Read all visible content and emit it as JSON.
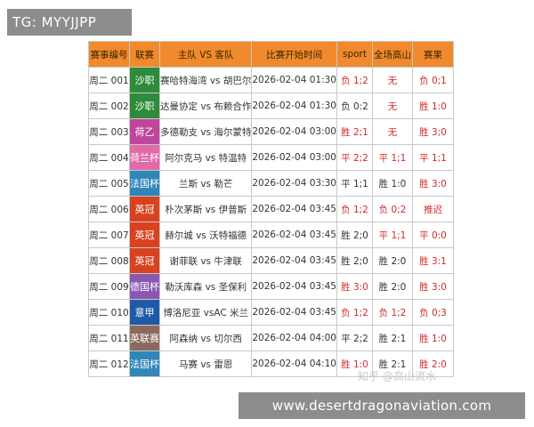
{
  "top_tag": "TG: MYYJJPP",
  "bottom_url": "www.desertdragonaviation.com",
  "watermark": "知乎 @高山流水",
  "columns": {
    "num": "赛事编号",
    "league": "联赛",
    "teams": "主队 VS 客队",
    "time": "比赛开始时间",
    "sport": "sport",
    "handicap": "全场高山",
    "result": "赛果"
  },
  "rows": [
    {
      "num": "周二 001",
      "league": "沙职",
      "league_color": "#2e8b3a",
      "teams": "赛哈特海湾 vs 胡巴尔",
      "time": "2026-02-04 01:30",
      "sport": "负 1;2",
      "sport_color": "#d22b2b",
      "handicap": "无",
      "handicap_color": "#d22b2b",
      "result": "负 0;1",
      "result_color": "#d22b2b"
    },
    {
      "num": "周二 002",
      "league": "沙职",
      "league_color": "#2e8b3a",
      "teams": "达曼协定 vs 布赖合作",
      "time": "2026-02-04 01:30",
      "sport": "负 0:2",
      "sport_color": "#333333",
      "handicap": "无",
      "handicap_color": "#d22b2b",
      "result": "胜 1:0",
      "result_color": "#d22b2b"
    },
    {
      "num": "周二 003",
      "league": "荷乙",
      "league_color": "#c0469d",
      "teams": "多德勒支 vs 海尔蒙特",
      "time": "2026-02-04 03:00",
      "sport": "胜 2;1",
      "sport_color": "#d22b2b",
      "handicap": "无",
      "handicap_color": "#d22b2b",
      "result": "胜 3;0",
      "result_color": "#d22b2b"
    },
    {
      "num": "周二 004",
      "league": "荷兰杯",
      "league_color": "#e36aa8",
      "teams": "阿尔克马 vs 特温特",
      "time": "2026-02-04 03:00",
      "sport": "平 2;2",
      "sport_color": "#d22b2b",
      "handicap": "平 1;1",
      "handicap_color": "#d22b2b",
      "result": "平 1;1",
      "result_color": "#d22b2b"
    },
    {
      "num": "周二 005",
      "league": "法国杯",
      "league_color": "#2f86b8",
      "teams": "兰斯 vs 勒芒",
      "time": "2026-02-04 03:30",
      "sport": "平 1;1",
      "sport_color": "#333333",
      "handicap": "胜 1:0",
      "handicap_color": "#333333",
      "result": "胜 3:0",
      "result_color": "#d22b2b"
    },
    {
      "num": "周二 006",
      "league": "英冠",
      "league_color": "#d9421f",
      "teams": "朴次茅斯 vs 伊普斯",
      "time": "2026-02-04 03:45",
      "sport": "负 1;2",
      "sport_color": "#d22b2b",
      "handicap": "负 0;2",
      "handicap_color": "#d22b2b",
      "result": "推迟",
      "result_color": "#d22b2b"
    },
    {
      "num": "周二 007",
      "league": "英冠",
      "league_color": "#d9421f",
      "teams": "赫尔城 vs 沃特福德",
      "time": "2026-02-04 03:45",
      "sport": "胜 2;0",
      "sport_color": "#333333",
      "handicap": "平 1;1",
      "handicap_color": "#d22b2b",
      "result": "平 0:0",
      "result_color": "#d22b2b"
    },
    {
      "num": "周二 008",
      "league": "英冠",
      "league_color": "#d9421f",
      "teams": "谢菲联 vs 牛津联",
      "time": "2026-02-04 03:45",
      "sport": "胜 2;0",
      "sport_color": "#333333",
      "handicap": "胜 2:0",
      "handicap_color": "#333333",
      "result": "胜 3:1",
      "result_color": "#d22b2b"
    },
    {
      "num": "周二 009",
      "league": "德国杯",
      "league_color": "#8a57b0",
      "teams": "勒沃库森 vs 圣保利",
      "time": "2026-02-04 03:45",
      "sport": "胜 3:0",
      "sport_color": "#d22b2b",
      "handicap": "胜 2:0",
      "handicap_color": "#333333",
      "result": "胜 3:0",
      "result_color": "#d22b2b"
    },
    {
      "num": "周二 010",
      "league": "意甲",
      "league_color": "#1f5aa8",
      "teams": "博洛尼亚 vsAC 米兰",
      "time": "2026-02-04 03:45",
      "sport": "负 1;2",
      "sport_color": "#d22b2b",
      "handicap": "负 1;2",
      "handicap_color": "#d22b2b",
      "result": "负 0;3",
      "result_color": "#d22b2b"
    },
    {
      "num": "周二 011",
      "league": "英联赛",
      "league_color": "#8a6a5e",
      "teams": "阿森纳 vs 切尔西",
      "time": "2026-02-04 04:00",
      "sport": "平 2;2",
      "sport_color": "#333333",
      "handicap": "胜 2:1",
      "handicap_color": "#333333",
      "result": "胜 1:0",
      "result_color": "#d22b2b"
    },
    {
      "num": "周二 012",
      "league": "法国杯",
      "league_color": "#2f86b8",
      "teams": "马赛 vs 雷恩",
      "time": "2026-02-04 04:10",
      "sport": "胜 1:0",
      "sport_color": "#d22b2b",
      "handicap": "胜 2:1",
      "handicap_color": "#333333",
      "result": "胜 2:0",
      "result_color": "#d22b2b"
    }
  ]
}
